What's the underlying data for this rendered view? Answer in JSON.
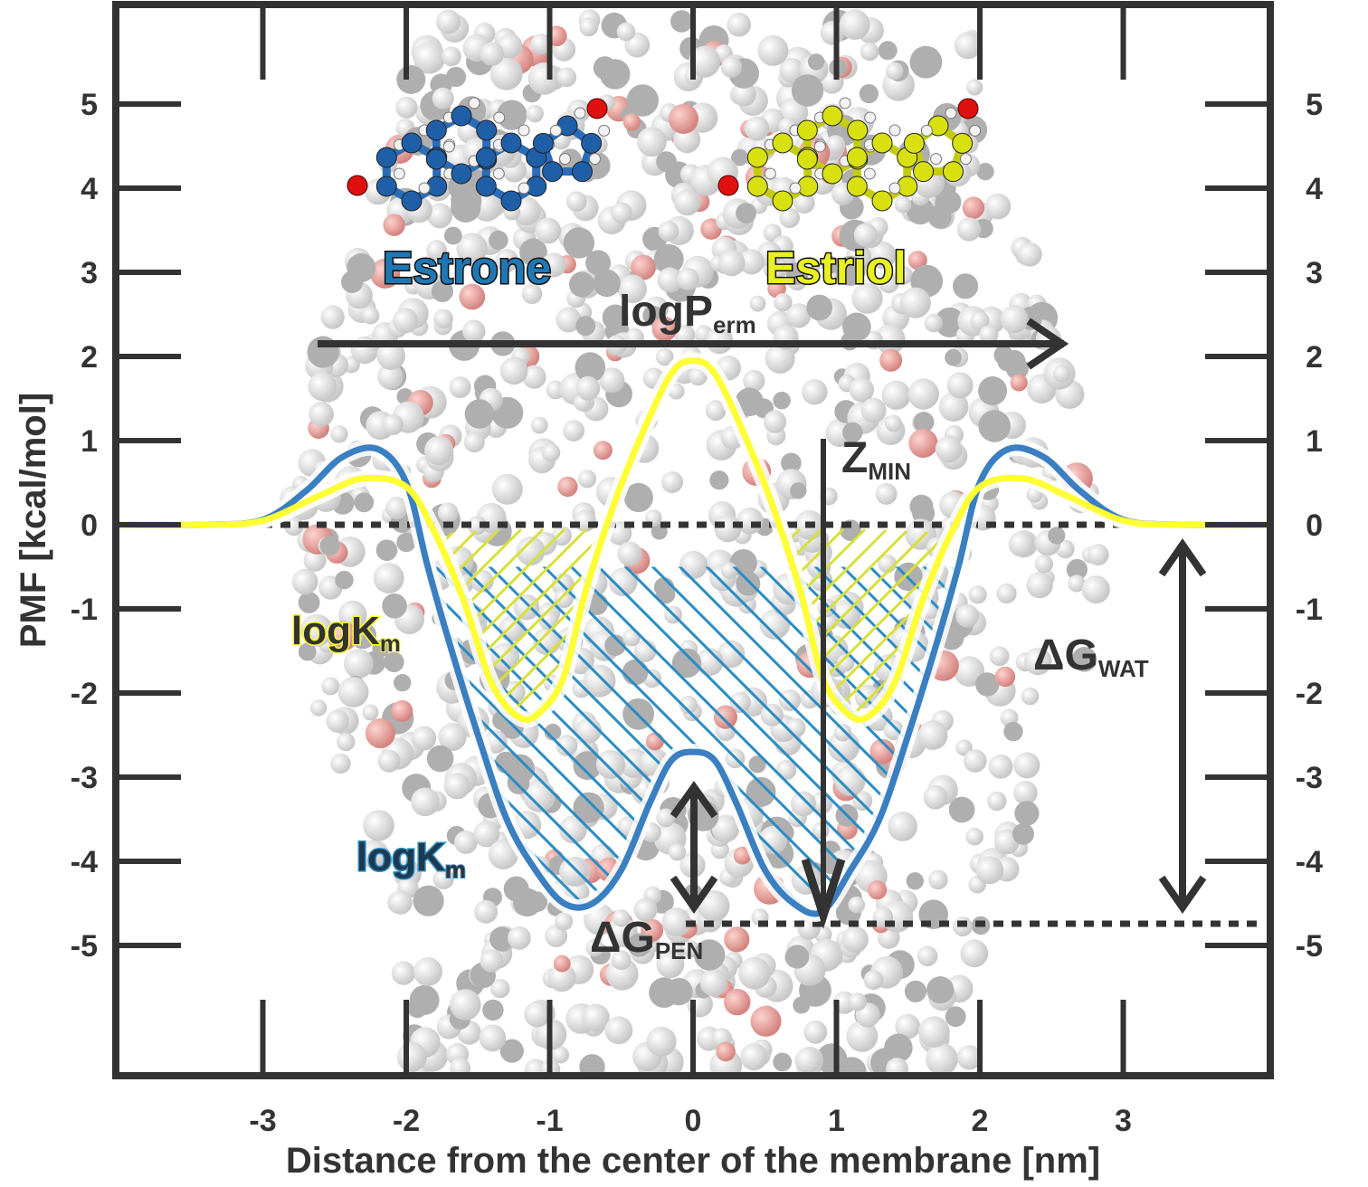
{
  "chart_data": {
    "type": "line",
    "xlabel": "Distance from the center of the membrane [nm]",
    "ylabel": "PMF [kcal/mol]",
    "xlim": [
      -4.0,
      4.0
    ],
    "ylim": [
      -6.2,
      6.0
    ],
    "x_ticks": [
      "-3",
      "-2",
      "-1",
      "0",
      "1",
      "2",
      "3"
    ],
    "x_tick_values": [
      -3,
      -2,
      -1,
      0,
      1,
      2,
      3
    ],
    "y_ticks": [
      "5",
      "4",
      "3",
      "2",
      "1",
      "0",
      "-1",
      "-2",
      "-3",
      "-4",
      "-5"
    ],
    "y_tick_values": [
      5,
      4,
      3,
      2,
      1,
      0,
      -1,
      -2,
      -3,
      -4,
      -5
    ],
    "grid": false,
    "series": [
      {
        "name": "Estrone",
        "color": "#3a7fc1",
        "x": [
          -4.0,
          -3.4,
          -3.0,
          -2.7,
          -2.45,
          -2.2,
          -2.0,
          -1.85,
          -1.7,
          -1.5,
          -1.3,
          -1.1,
          -0.9,
          -0.7,
          -0.5,
          -0.3,
          -0.15,
          0.0,
          0.15,
          0.3,
          0.5,
          0.7,
          0.9,
          1.1,
          1.3,
          1.5,
          1.7,
          1.85,
          2.0,
          2.2,
          2.45,
          2.7,
          3.0,
          3.4,
          4.0
        ],
        "y": [
          0.0,
          0.0,
          0.06,
          0.4,
          0.8,
          0.9,
          0.5,
          -0.5,
          -1.4,
          -2.5,
          -3.5,
          -4.1,
          -4.5,
          -4.5,
          -4.1,
          -3.3,
          -2.8,
          -2.7,
          -2.8,
          -3.3,
          -4.1,
          -4.5,
          -4.6,
          -4.1,
          -3.5,
          -2.5,
          -1.4,
          -0.5,
          0.5,
          0.9,
          0.8,
          0.4,
          0.06,
          0.0,
          0.0
        ]
      },
      {
        "name": "Estriol",
        "color": "#ffff33",
        "x": [
          -4.0,
          -3.4,
          -3.0,
          -2.6,
          -2.3,
          -2.0,
          -1.8,
          -1.6,
          -1.4,
          -1.2,
          -1.05,
          -0.9,
          -0.75,
          -0.55,
          -0.35,
          -0.15,
          0.0,
          0.15,
          0.35,
          0.55,
          0.75,
          0.9,
          1.05,
          1.2,
          1.4,
          1.6,
          1.8,
          2.0,
          2.3,
          2.6,
          3.0,
          3.4,
          4.0
        ],
        "y": [
          0.0,
          0.0,
          0.05,
          0.35,
          0.55,
          0.45,
          -0.1,
          -0.9,
          -1.9,
          -2.3,
          -2.2,
          -1.8,
          -0.8,
          0.25,
          1.1,
          1.8,
          1.95,
          1.8,
          1.1,
          0.25,
          -0.8,
          -1.8,
          -2.2,
          -2.3,
          -1.9,
          -0.9,
          -0.1,
          0.45,
          0.55,
          0.35,
          0.05,
          0.0,
          0.0
        ]
      }
    ],
    "annotations": {
      "logperm": {
        "main": "logP",
        "sub": "erm"
      },
      "zmin": {
        "main": "Z",
        "sub": "MIN"
      },
      "dgwat": {
        "main": "ΔG",
        "sub": "WAT"
      },
      "dgpen": {
        "main": "ΔG",
        "sub": "PEN"
      },
      "logkm_yellow": {
        "main": "logK",
        "sub": "m"
      },
      "logkm_blue": {
        "main": "logK",
        "sub": "m"
      },
      "estrone": "Estrone",
      "estriol": "Estriol"
    },
    "colors": {
      "estrone": "#3a7fc1",
      "estriol": "#ffff33",
      "estrone_label": "#1f78b4",
      "estriol_label": "#e8f020",
      "axis": "#333333",
      "hatch_blue": "#2b8cc4",
      "hatch_yellow": "#d8e03a"
    }
  }
}
